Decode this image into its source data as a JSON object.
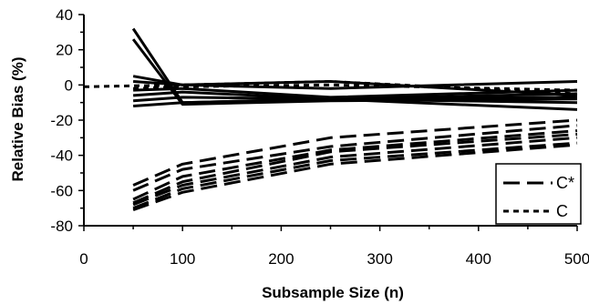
{
  "chart_data": {
    "type": "line",
    "title": "",
    "xlabel": "Subsample Size (n)",
    "ylabel": "Relative Bias (%)",
    "xlim": [
      0,
      500
    ],
    "ylim": [
      -80,
      40
    ],
    "x_ticks": [
      0,
      100,
      200,
      300,
      400,
      500
    ],
    "y_ticks": [
      -80,
      -60,
      -40,
      -20,
      0,
      20,
      40
    ],
    "x_tick_labels": [
      "0",
      "100",
      "200",
      "300",
      "400",
      "500"
    ],
    "y_tick_labels": [
      "-80",
      "-60",
      "-40",
      "-20",
      "0",
      "20",
      "40"
    ],
    "grid": false,
    "legend": {
      "position": "bottom-right",
      "entries": [
        {
          "label": "C*",
          "style": "long-dash"
        },
        {
          "label": "C",
          "style": "short-dash"
        }
      ]
    },
    "series": [
      {
        "group": "C",
        "style": "short-dash",
        "x": [
          0,
          100,
          250,
          500
        ],
        "y": [
          -1,
          0,
          2,
          -5
        ]
      },
      {
        "group": "C",
        "style": "short-dash",
        "x": [
          50,
          100,
          250,
          500
        ],
        "y": [
          -2,
          -1,
          0,
          -3
        ]
      },
      {
        "group": "C",
        "style": "solid",
        "x": [
          50,
          100,
          250,
          500
        ],
        "y": [
          32,
          -10,
          -8,
          -10
        ]
      },
      {
        "group": "C",
        "style": "solid",
        "x": [
          50,
          100,
          250,
          500
        ],
        "y": [
          26,
          -11,
          -9,
          -8
        ]
      },
      {
        "group": "C",
        "style": "solid",
        "x": [
          50,
          100,
          250,
          500
        ],
        "y": [
          5,
          0,
          2,
          -6
        ]
      },
      {
        "group": "C",
        "style": "solid",
        "x": [
          50,
          100,
          250,
          500
        ],
        "y": [
          2,
          0,
          -2,
          2
        ]
      },
      {
        "group": "C",
        "style": "solid",
        "x": [
          50,
          100,
          250,
          500
        ],
        "y": [
          -3,
          -2,
          -7,
          -3
        ]
      },
      {
        "group": "C",
        "style": "solid",
        "x": [
          50,
          100,
          250,
          500
        ],
        "y": [
          -6,
          -4,
          -8,
          -7
        ]
      },
      {
        "group": "C",
        "style": "solid",
        "x": [
          50,
          100,
          250,
          500
        ],
        "y": [
          -9,
          -7,
          -8,
          -5
        ]
      },
      {
        "group": "C",
        "style": "solid",
        "x": [
          50,
          100,
          250,
          500
        ],
        "y": [
          -12,
          -10,
          -8,
          -14
        ]
      },
      {
        "group": "C*",
        "style": "long-dash",
        "x": [
          50,
          100,
          250,
          500
        ],
        "y": [
          -57,
          -45,
          -30,
          -20
        ]
      },
      {
        "group": "C*",
        "style": "long-dash",
        "x": [
          50,
          100,
          250,
          500
        ],
        "y": [
          -60,
          -48,
          -35,
          -23
        ]
      },
      {
        "group": "C*",
        "style": "long-dash",
        "x": [
          50,
          100,
          250,
          500
        ],
        "y": [
          -65,
          -52,
          -37,
          -26
        ]
      },
      {
        "group": "C*",
        "style": "long-dash",
        "x": [
          50,
          100,
          250,
          500
        ],
        "y": [
          -67,
          -55,
          -38,
          -28
        ]
      },
      {
        "group": "C*",
        "style": "long-dash",
        "x": [
          50,
          100,
          250,
          500
        ],
        "y": [
          -68,
          -57,
          -41,
          -30
        ]
      },
      {
        "group": "C*",
        "style": "long-dash",
        "x": [
          50,
          100,
          250,
          500
        ],
        "y": [
          -70,
          -59,
          -43,
          -33
        ]
      },
      {
        "group": "C*",
        "style": "long-dash",
        "x": [
          50,
          100,
          250,
          500
        ],
        "y": [
          -71,
          -61,
          -45,
          -34
        ]
      }
    ]
  }
}
